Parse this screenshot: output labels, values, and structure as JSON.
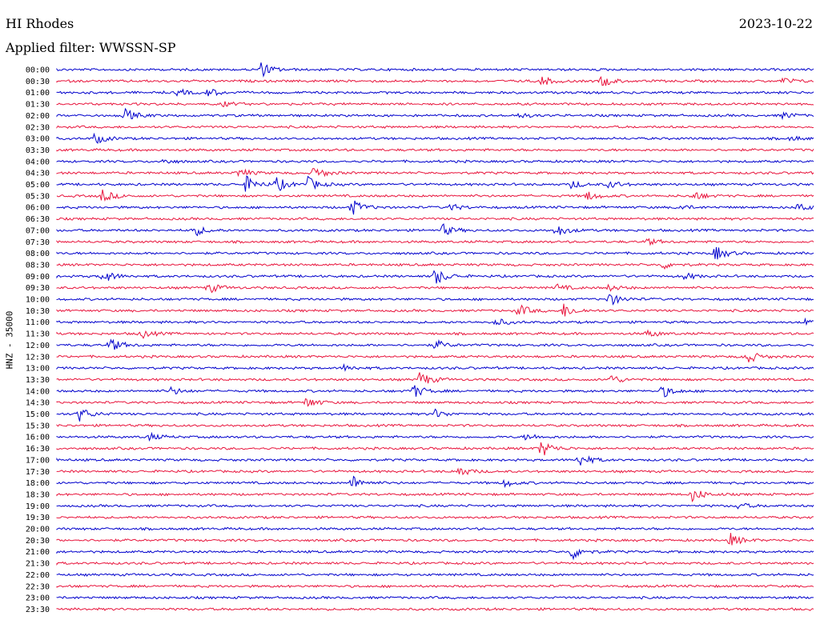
{
  "header": {
    "station": "HI Rhodes",
    "date": "2023-10-22",
    "filter": "Applied filter: WWSSN-SP"
  },
  "chart_data": {
    "type": "line",
    "title": "HI Rhodes",
    "ylabel": "HNZ - 35000",
    "row_colors": [
      "#0000cc",
      "#e8143c"
    ],
    "tick_labels": [
      "00:00",
      "00:30",
      "01:00",
      "01:30",
      "02:00",
      "02:30",
      "03:00",
      "03:30",
      "04:00",
      "04:30",
      "05:00",
      "05:30",
      "06:00",
      "06:30",
      "07:00",
      "07:30",
      "08:00",
      "08:30",
      "09:00",
      "09:30",
      "10:00",
      "10:30",
      "11:00",
      "11:30",
      "12:00",
      "12:30",
      "13:00",
      "13:30",
      "14:00",
      "14:30",
      "15:00",
      "15:30",
      "16:00",
      "16:30",
      "17:00",
      "17:30",
      "18:00",
      "18:30",
      "19:00",
      "19:30",
      "20:00",
      "20:30",
      "21:00",
      "21:30",
      "22:00",
      "22:30",
      "23:00",
      "23:30"
    ],
    "events": [
      {
        "row": 0,
        "t": 0.27,
        "amp": 9
      },
      {
        "row": 1,
        "t": 0.64,
        "amp": 6
      },
      {
        "row": 1,
        "t": 0.72,
        "amp": 7
      },
      {
        "row": 1,
        "t": 0.96,
        "amp": 4
      },
      {
        "row": 2,
        "t": 0.16,
        "amp": 4
      },
      {
        "row": 2,
        "t": 0.2,
        "amp": 5
      },
      {
        "row": 3,
        "t": 0.22,
        "amp": 3
      },
      {
        "row": 4,
        "t": 0.09,
        "amp": 8
      },
      {
        "row": 4,
        "t": 0.61,
        "amp": 3
      },
      {
        "row": 4,
        "t": 0.96,
        "amp": 4
      },
      {
        "row": 6,
        "t": 0.05,
        "amp": 7
      },
      {
        "row": 6,
        "t": 0.97,
        "amp": 3
      },
      {
        "row": 8,
        "t": 0.14,
        "amp": 3
      },
      {
        "row": 9,
        "t": 0.24,
        "amp": 6
      },
      {
        "row": 9,
        "t": 0.34,
        "amp": 8
      },
      {
        "row": 10,
        "t": 0.25,
        "amp": 10
      },
      {
        "row": 10,
        "t": 0.29,
        "amp": 9
      },
      {
        "row": 10,
        "t": 0.33,
        "amp": 10
      },
      {
        "row": 10,
        "t": 0.68,
        "amp": 5
      },
      {
        "row": 10,
        "t": 0.73,
        "amp": 5
      },
      {
        "row": 11,
        "t": 0.06,
        "amp": 8
      },
      {
        "row": 11,
        "t": 0.7,
        "amp": 6
      },
      {
        "row": 11,
        "t": 0.84,
        "amp": 6
      },
      {
        "row": 12,
        "t": 0.39,
        "amp": 10
      },
      {
        "row": 12,
        "t": 0.52,
        "amp": 4
      },
      {
        "row": 12,
        "t": 0.82,
        "amp": 4
      },
      {
        "row": 12,
        "t": 0.98,
        "amp": 7
      },
      {
        "row": 14,
        "t": 0.18,
        "amp": 8
      },
      {
        "row": 14,
        "t": 0.51,
        "amp": 7
      },
      {
        "row": 14,
        "t": 0.66,
        "amp": 8
      },
      {
        "row": 15,
        "t": 0.78,
        "amp": 4
      },
      {
        "row": 16,
        "t": 0.87,
        "amp": 9
      },
      {
        "row": 17,
        "t": 0.8,
        "amp": 5
      },
      {
        "row": 18,
        "t": 0.06,
        "amp": 9
      },
      {
        "row": 18,
        "t": 0.5,
        "amp": 11
      },
      {
        "row": 18,
        "t": 0.83,
        "amp": 4
      },
      {
        "row": 19,
        "t": 0.2,
        "amp": 7
      },
      {
        "row": 19,
        "t": 0.66,
        "amp": 4
      },
      {
        "row": 19,
        "t": 0.73,
        "amp": 4
      },
      {
        "row": 20,
        "t": 0.73,
        "amp": 8
      },
      {
        "row": 21,
        "t": 0.61,
        "amp": 8
      },
      {
        "row": 21,
        "t": 0.67,
        "amp": 9
      },
      {
        "row": 22,
        "t": 0.58,
        "amp": 5
      },
      {
        "row": 22,
        "t": 0.99,
        "amp": 4
      },
      {
        "row": 23,
        "t": 0.11,
        "amp": 6
      },
      {
        "row": 23,
        "t": 0.78,
        "amp": 5
      },
      {
        "row": 24,
        "t": 0.07,
        "amp": 9
      },
      {
        "row": 24,
        "t": 0.5,
        "amp": 6
      },
      {
        "row": 25,
        "t": 0.91,
        "amp": 10
      },
      {
        "row": 26,
        "t": 0.38,
        "amp": 4
      },
      {
        "row": 27,
        "t": 0.48,
        "amp": 10
      },
      {
        "row": 27,
        "t": 0.73,
        "amp": 7
      },
      {
        "row": 28,
        "t": 0.15,
        "amp": 5
      },
      {
        "row": 28,
        "t": 0.47,
        "amp": 9
      },
      {
        "row": 28,
        "t": 0.8,
        "amp": 8
      },
      {
        "row": 29,
        "t": 0.33,
        "amp": 7
      },
      {
        "row": 30,
        "t": 0.03,
        "amp": 9
      },
      {
        "row": 30,
        "t": 0.5,
        "amp": 5
      },
      {
        "row": 32,
        "t": 0.12,
        "amp": 5
      },
      {
        "row": 32,
        "t": 0.62,
        "amp": 4
      },
      {
        "row": 33,
        "t": 0.64,
        "amp": 11
      },
      {
        "row": 34,
        "t": 0.69,
        "amp": 9
      },
      {
        "row": 35,
        "t": 0.53,
        "amp": 7
      },
      {
        "row": 36,
        "t": 0.39,
        "amp": 9
      },
      {
        "row": 36,
        "t": 0.59,
        "amp": 5
      },
      {
        "row": 37,
        "t": 0.84,
        "amp": 9
      },
      {
        "row": 38,
        "t": 0.9,
        "amp": 4
      },
      {
        "row": 41,
        "t": 0.89,
        "amp": 8
      },
      {
        "row": 42,
        "t": 0.68,
        "amp": 10
      }
    ]
  }
}
